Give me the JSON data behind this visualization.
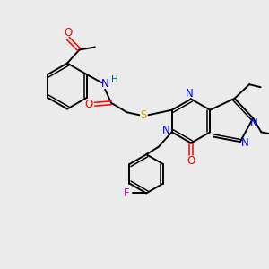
{
  "bg_color": "#ebebeb",
  "bond_color": "#000000",
  "colors": {
    "N": "#0000ff",
    "O": "#ff0000",
    "S": "#ccaa00",
    "F": "#cc00cc",
    "H": "#006060",
    "C": "#000000"
  }
}
